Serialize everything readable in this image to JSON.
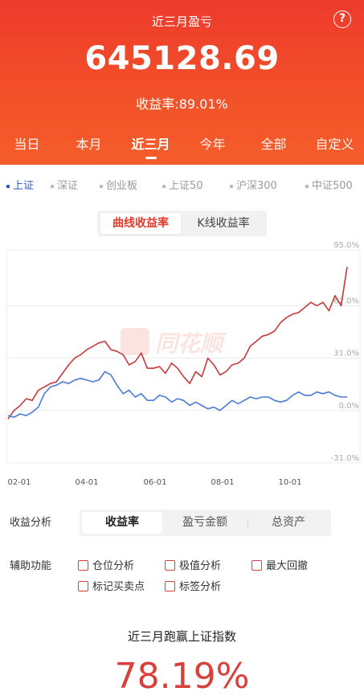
{
  "header": {
    "title": "近三月盈亏",
    "help_icon": "question-circle-icon",
    "amount": "645128.69",
    "yield_text": "收益率:89.01%"
  },
  "period_tabs": [
    {
      "label": "当日",
      "active": false
    },
    {
      "label": "本月",
      "active": false
    },
    {
      "label": "近三月",
      "active": true
    },
    {
      "label": "今年",
      "active": false
    },
    {
      "label": "全部",
      "active": false
    },
    {
      "label": "自定义",
      "active": false
    }
  ],
  "index_tabs": [
    {
      "label": "上证",
      "active": true
    },
    {
      "label": "深证",
      "active": false
    },
    {
      "label": "创业板",
      "active": false
    },
    {
      "label": "上证50",
      "active": false
    },
    {
      "label": "沪深300",
      "active": false
    },
    {
      "label": "中证500",
      "active": false
    }
  ],
  "chart_toggle": {
    "options": [
      "曲线收益率",
      "K线收益率"
    ],
    "active": 0
  },
  "watermark": "同花顺",
  "colors": {
    "accent": "#ee3a2c",
    "portfolio_line": "#c9383a",
    "index_line": "#4a7bd6"
  },
  "chart_data": {
    "type": "line",
    "x_tick_labels": [
      "02-01",
      "04-01",
      "06-01",
      "08-01",
      "10-01"
    ],
    "y_tick_labels": [
      "95.0%",
      "62.0%",
      "31.0%",
      "0.0%",
      "-31.0%"
    ],
    "ylim": [
      -31,
      95
    ],
    "grid": true,
    "series": [
      {
        "values": [
          -5,
          0,
          3,
          7,
          6,
          12,
          14,
          16,
          17,
          22,
          27,
          31,
          33,
          36,
          38,
          40,
          41,
          36,
          35,
          33,
          27,
          29,
          34,
          25,
          25,
          26,
          22,
          28,
          25,
          20,
          16,
          23,
          20,
          31,
          27,
          21,
          23,
          27,
          28,
          31,
          38,
          41,
          44,
          45,
          47,
          52,
          55,
          57,
          58,
          61,
          64,
          62,
          64,
          59,
          68,
          62,
          85
        ]
      },
      {
        "values": [
          -3,
          -4,
          -2,
          -3,
          -1,
          2,
          10,
          14,
          15,
          17,
          16,
          18,
          19,
          18,
          17,
          18,
          23,
          21,
          15,
          10,
          12,
          8,
          10,
          6,
          6,
          9,
          8,
          5,
          7,
          6,
          3,
          5,
          3,
          1,
          2,
          0,
          3,
          6,
          4,
          6,
          8,
          7,
          8,
          8,
          6,
          5,
          6,
          9,
          11,
          9,
          9,
          11,
          10,
          11,
          9,
          8,
          8
        ]
      }
    ]
  },
  "analysis": {
    "label": "收益分析",
    "options": [
      "收益率",
      "盈亏金额",
      "总资产"
    ],
    "active": 0
  },
  "aux": {
    "label": "辅助功能",
    "options": [
      "仓位分析",
      "极值分析",
      "最大回撤",
      "标记买卖点",
      "标签分析"
    ]
  },
  "summary": {
    "title": "近三月跑赢上证指数",
    "value": "78.19%"
  }
}
